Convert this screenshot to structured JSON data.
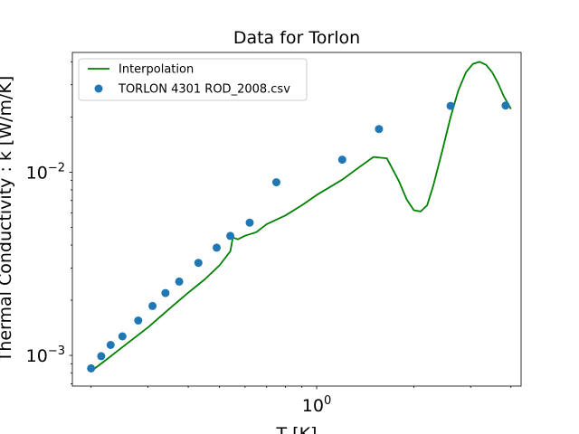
{
  "chart_data": {
    "type": "line",
    "title": "Data for Torlon",
    "xlabel": "T [K]",
    "ylabel": "Thermal Conductivity : k [W/m/K]",
    "x_scale": "log",
    "y_scale": "log",
    "xlim": [
      0.175,
      4.3
    ],
    "ylim": [
      0.00068,
      0.045
    ],
    "grid": false,
    "legend_position": "top-left",
    "x_ticks": [
      {
        "value": 1,
        "label": "10",
        "exp": "0"
      }
    ],
    "y_ticks": [
      {
        "value": 0.001,
        "label": "10",
        "exp": "−3"
      },
      {
        "value": 0.01,
        "label": "10",
        "exp": "−2"
      }
    ],
    "series": [
      {
        "name": "Interpolation",
        "kind": "line",
        "color": "#008000",
        "x": [
          0.2,
          0.22,
          0.25,
          0.3,
          0.35,
          0.4,
          0.45,
          0.5,
          0.54,
          0.55,
          0.57,
          0.6,
          0.65,
          0.7,
          0.8,
          0.9,
          1.0,
          1.1,
          1.2,
          1.35,
          1.5,
          1.65,
          1.8,
          1.9,
          2.0,
          2.1,
          2.2,
          2.3,
          2.45,
          2.6,
          2.75,
          2.9,
          3.05,
          3.2,
          3.35,
          3.5,
          3.65,
          3.8,
          4.0
        ],
        "y": [
          0.00082,
          0.00093,
          0.00111,
          0.00142,
          0.0018,
          0.0022,
          0.0026,
          0.0031,
          0.0037,
          0.0044,
          0.0043,
          0.0045,
          0.0047,
          0.0052,
          0.0058,
          0.0066,
          0.0075,
          0.0083,
          0.0091,
          0.0106,
          0.0121,
          0.0119,
          0.0089,
          0.0071,
          0.0062,
          0.0061,
          0.0066,
          0.0085,
          0.0131,
          0.02,
          0.028,
          0.035,
          0.039,
          0.04,
          0.0385,
          0.035,
          0.0305,
          0.026,
          0.0221
        ]
      },
      {
        "name": "TORLON 4301 ROD_2008.csv",
        "kind": "scatter",
        "color": "#1f77b4",
        "x": [
          0.2,
          0.215,
          0.23,
          0.25,
          0.28,
          0.31,
          0.34,
          0.375,
          0.43,
          0.49,
          0.54,
          0.62,
          0.75,
          1.2,
          1.56,
          2.6,
          3.85
        ],
        "y": [
          0.00085,
          0.00099,
          0.00114,
          0.00127,
          0.00155,
          0.00186,
          0.00219,
          0.00253,
          0.0032,
          0.00387,
          0.00449,
          0.0053,
          0.0088,
          0.0117,
          0.0172,
          0.023,
          0.0231
        ]
      }
    ]
  }
}
